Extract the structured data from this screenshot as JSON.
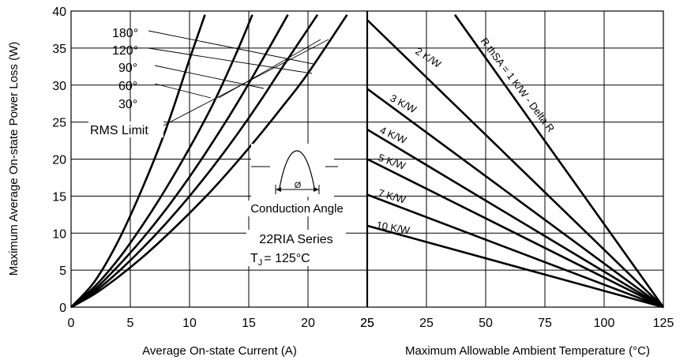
{
  "chart_data": [
    {
      "type": "line",
      "panel": "left",
      "xlabel": "Average On-state Current (A)",
      "ylabel": "Maximum Average On-state Power Loss (W)",
      "xlim": [
        0,
        25
      ],
      "ylim": [
        0,
        40
      ],
      "x_ticks": [
        "0",
        "5",
        "10",
        "15",
        "20",
        "25"
      ],
      "y_ticks": [
        "0",
        "5",
        "10",
        "15",
        "20",
        "25",
        "30",
        "35",
        "40"
      ],
      "grid": true,
      "series": [
        {
          "name": "180°",
          "x": [
            0,
            2,
            4,
            6,
            8,
            10,
            11.3
          ],
          "y": [
            0,
            3.5,
            9,
            16,
            24,
            33.5,
            39.5
          ]
        },
        {
          "name": "120°",
          "x": [
            0,
            2,
            4,
            6,
            8,
            10,
            12,
            14,
            15.3
          ],
          "y": [
            0,
            2.8,
            6.5,
            11,
            16,
            21.5,
            27.5,
            34.5,
            39.5
          ]
        },
        {
          "name": "90°",
          "x": [
            0,
            2,
            4,
            6,
            8,
            10,
            12,
            14,
            16,
            18.3
          ],
          "y": [
            0,
            2.4,
            5.6,
            9.2,
            13.2,
            17.6,
            22.4,
            27.5,
            33,
            39.5
          ]
        },
        {
          "name": "60°",
          "x": [
            0,
            2,
            4,
            6,
            8,
            10,
            12,
            14,
            16,
            18,
            20.8
          ],
          "y": [
            0,
            2.1,
            4.8,
            7.9,
            11.3,
            15,
            19,
            23.3,
            27.9,
            32.8,
            39.5
          ]
        },
        {
          "name": "30°",
          "x": [
            0,
            2,
            4,
            6,
            8,
            10,
            12,
            14,
            16,
            18,
            20,
            23.3
          ],
          "y": [
            0,
            1.8,
            4.1,
            6.7,
            9.6,
            12.7,
            16,
            19.6,
            23.4,
            27.4,
            31.6,
            39.5
          ]
        }
      ],
      "annotations": {
        "angle_labels": [
          "180°",
          "120°",
          "90°",
          "60°",
          "30°"
        ],
        "rms_limit": "RMS Limit",
        "conduction_symbol": "Ø",
        "conduction_caption": "Conduction Angle",
        "series_name": "22RIA Series",
        "tj_prefix": "T",
        "tj_sub": "J",
        "tj_value": "= 125°C"
      }
    },
    {
      "type": "line",
      "panel": "right",
      "xlabel": "Maximum Allowable Ambient Temperature (°C)",
      "x_ticks": [
        "25",
        "25",
        "50",
        "75",
        "100",
        "125"
      ],
      "xlim": [
        0,
        125
      ],
      "ylim": [
        0,
        40
      ],
      "grid": true,
      "series": [
        {
          "name": "R thSA = 1 K/W - Delta R",
          "x": [
            37,
            125
          ],
          "y": [
            39.5,
            0
          ]
        },
        {
          "name": "2 K/W",
          "x": [
            0,
            125
          ],
          "y": [
            38.8,
            0
          ]
        },
        {
          "name": "3 K/W",
          "x": [
            0,
            125
          ],
          "y": [
            29.5,
            0
          ]
        },
        {
          "name": "4 K/W",
          "x": [
            0,
            125
          ],
          "y": [
            24,
            0
          ]
        },
        {
          "name": "5 K/W",
          "x": [
            0,
            125
          ],
          "y": [
            20,
            0
          ]
        },
        {
          "name": "7 K/W",
          "x": [
            0,
            125
          ],
          "y": [
            15.2,
            0
          ]
        },
        {
          "name": "10 K/W",
          "x": [
            0,
            125
          ],
          "y": [
            11,
            0
          ]
        }
      ],
      "line_labels": [
        "R thSA = 1 K/W - Delta R",
        "2 K/W",
        "3 K/W",
        "4 K/W",
        "5 K/W",
        "7 K/W",
        "10 K/W"
      ]
    }
  ],
  "colors": {
    "line": "#000000",
    "grid": "#000000",
    "background": "#ffffff"
  }
}
